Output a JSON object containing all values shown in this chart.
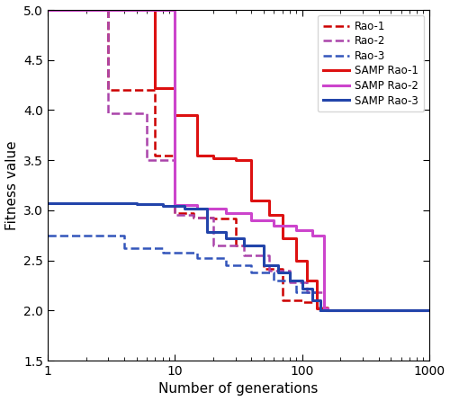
{
  "title": "",
  "xlabel": "Number of generations",
  "ylabel": "Fitness value",
  "xlim": [
    1,
    1000
  ],
  "ylim": [
    1.5,
    5.0
  ],
  "series": {
    "Rao1": {
      "x": [
        1,
        3,
        3,
        7,
        7,
        10,
        10,
        14,
        14,
        20,
        20,
        30,
        30,
        50,
        50,
        70,
        70,
        100,
        100,
        130,
        130,
        160,
        160,
        1000
      ],
      "y": [
        5.0,
        5.0,
        4.2,
        4.2,
        3.55,
        3.55,
        2.97,
        2.97,
        2.93,
        2.93,
        2.92,
        2.92,
        2.65,
        2.65,
        2.42,
        2.42,
        2.1,
        2.1,
        2.08,
        2.08,
        2.03,
        2.03,
        2.0,
        2.0
      ],
      "color": "#cc0000",
      "linestyle": "--",
      "linewidth": 1.8
    },
    "Rao2": {
      "x": [
        1,
        3,
        3,
        6,
        6,
        10,
        10,
        14,
        14,
        20,
        20,
        35,
        35,
        55,
        55,
        80,
        80,
        110,
        110,
        150,
        150,
        1000
      ],
      "y": [
        5.0,
        5.0,
        3.97,
        3.97,
        3.5,
        3.5,
        2.95,
        2.95,
        2.93,
        2.93,
        2.65,
        2.65,
        2.55,
        2.55,
        2.4,
        2.4,
        2.28,
        2.28,
        2.18,
        2.18,
        2.0,
        2.0
      ],
      "color": "#aa44aa",
      "linestyle": "--",
      "linewidth": 1.8
    },
    "Rao3": {
      "x": [
        1,
        4,
        4,
        8,
        8,
        15,
        15,
        25,
        25,
        40,
        40,
        60,
        60,
        90,
        90,
        130,
        130,
        1000
      ],
      "y": [
        2.75,
        2.75,
        2.62,
        2.62,
        2.58,
        2.58,
        2.52,
        2.52,
        2.45,
        2.45,
        2.38,
        2.38,
        2.3,
        2.3,
        2.18,
        2.18,
        2.0,
        2.0
      ],
      "color": "#3355bb",
      "linestyle": "--",
      "linewidth": 1.8
    },
    "SAMP_Rao1": {
      "x": [
        1,
        7,
        7,
        10,
        10,
        15,
        15,
        20,
        20,
        30,
        30,
        40,
        40,
        55,
        55,
        70,
        70,
        90,
        90,
        110,
        110,
        130,
        130,
        155,
        155,
        1000
      ],
      "y": [
        5.0,
        5.0,
        4.22,
        4.22,
        3.95,
        3.95,
        3.55,
        3.55,
        3.52,
        3.52,
        3.5,
        3.5,
        3.1,
        3.1,
        2.95,
        2.95,
        2.72,
        2.72,
        2.5,
        2.5,
        2.3,
        2.3,
        2.02,
        2.02,
        2.0,
        2.0
      ],
      "color": "#dd1111",
      "linestyle": "-",
      "linewidth": 2.2
    },
    "SAMP_Rao2": {
      "x": [
        1,
        10,
        10,
        15,
        15,
        25,
        25,
        40,
        40,
        60,
        60,
        90,
        90,
        120,
        120,
        150,
        150,
        160,
        160,
        1000
      ],
      "y": [
        5.0,
        5.0,
        3.05,
        3.05,
        3.02,
        3.02,
        2.97,
        2.97,
        2.9,
        2.9,
        2.85,
        2.85,
        2.8,
        2.8,
        2.75,
        2.75,
        2.02,
        2.02,
        2.0,
        2.0
      ],
      "color": "#cc44cc",
      "linestyle": "-",
      "linewidth": 2.2
    },
    "SAMP_Rao3": {
      "x": [
        1,
        5,
        5,
        8,
        8,
        12,
        12,
        18,
        18,
        25,
        25,
        35,
        35,
        50,
        50,
        65,
        65,
        80,
        80,
        100,
        100,
        120,
        120,
        140,
        140,
        1000
      ],
      "y": [
        3.07,
        3.07,
        3.06,
        3.06,
        3.04,
        3.04,
        3.02,
        3.02,
        2.78,
        2.78,
        2.72,
        2.72,
        2.65,
        2.65,
        2.45,
        2.45,
        2.38,
        2.38,
        2.3,
        2.3,
        2.22,
        2.22,
        2.1,
        2.1,
        2.0,
        2.0
      ],
      "color": "#2244aa",
      "linestyle": "-",
      "linewidth": 2.2
    }
  }
}
